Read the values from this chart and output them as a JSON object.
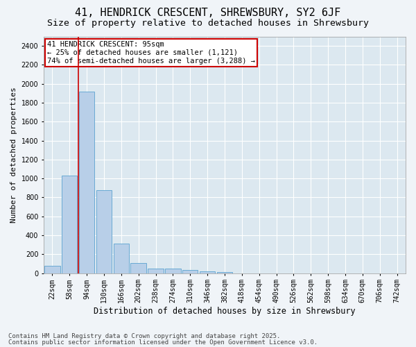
{
  "title1": "41, HENDRICK CRESCENT, SHREWSBURY, SY2 6JF",
  "title2": "Size of property relative to detached houses in Shrewsbury",
  "xlabel": "Distribution of detached houses by size in Shrewsbury",
  "ylabel": "Number of detached properties",
  "categories": [
    "22sqm",
    "58sqm",
    "94sqm",
    "130sqm",
    "166sqm",
    "202sqm",
    "238sqm",
    "274sqm",
    "310sqm",
    "346sqm",
    "382sqm",
    "418sqm",
    "454sqm",
    "490sqm",
    "526sqm",
    "562sqm",
    "598sqm",
    "634sqm",
    "670sqm",
    "706sqm",
    "742sqm"
  ],
  "values": [
    80,
    1030,
    1920,
    880,
    310,
    110,
    50,
    45,
    30,
    20,
    10,
    0,
    0,
    0,
    0,
    0,
    0,
    0,
    0,
    0,
    0
  ],
  "bar_color": "#b8cfe8",
  "bar_edge_color": "#6aaad4",
  "vline_color": "#cc0000",
  "annotation_text": "41 HENDRICK CRESCENT: 95sqm\n← 25% of detached houses are smaller (1,121)\n74% of semi-detached houses are larger (3,288) →",
  "annotation_box_color": "#cc0000",
  "ylim": [
    0,
    2500
  ],
  "yticks": [
    0,
    200,
    400,
    600,
    800,
    1000,
    1200,
    1400,
    1600,
    1800,
    2000,
    2200,
    2400
  ],
  "footer1": "Contains HM Land Registry data © Crown copyright and database right 2025.",
  "footer2": "Contains public sector information licensed under the Open Government Licence v3.0.",
  "bg_color": "#f0f4f8",
  "plot_bg_color": "#dce8f0",
  "grid_color": "#ffffff",
  "title1_fontsize": 11,
  "title2_fontsize": 9.5,
  "xlabel_fontsize": 8.5,
  "ylabel_fontsize": 8,
  "tick_fontsize": 7,
  "annotation_fontsize": 7.5,
  "footer_fontsize": 6.5
}
